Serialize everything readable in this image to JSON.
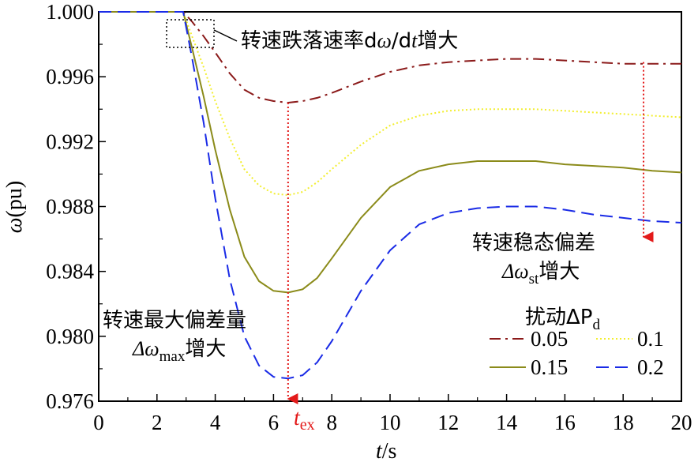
{
  "chart_data": {
    "type": "line",
    "xlabel_italic": "t",
    "xlabel_unit": "/s",
    "ylabel_italic": "ω",
    "ylabel_unit": "(pu)",
    "xlim": [
      0,
      20
    ],
    "ylim": [
      0.976,
      1.0
    ],
    "xticks": [
      "0",
      "2",
      "4",
      "6",
      "8",
      "10",
      "12",
      "14",
      "16",
      "18",
      "20"
    ],
    "yticks": [
      "0.976",
      "0.980",
      "0.984",
      "0.988",
      "0.992",
      "0.996",
      "1.000"
    ],
    "grid": false,
    "legend": {
      "placement": "bottom-right",
      "title": "扰动ΔP",
      "title_sub": "d",
      "columns": 2
    },
    "series": [
      {
        "name": "0.05",
        "color": "#8B1A1A",
        "dash": "dash-dot",
        "x": [
          0,
          2.9,
          3.2,
          3.6,
          4.0,
          4.5,
          5.0,
          5.5,
          6.0,
          6.5,
          7.0,
          7.5,
          8.0,
          9.0,
          10.0,
          11.0,
          12.0,
          13.0,
          14.0,
          15.0,
          16.0,
          17.0,
          18.0,
          19.0,
          20.0
        ],
        "y": [
          1.0,
          1.0,
          0.9994,
          0.9985,
          0.9975,
          0.9962,
          0.9952,
          0.9947,
          0.9945,
          0.9944,
          0.9945,
          0.9947,
          0.995,
          0.9957,
          0.9963,
          0.9967,
          0.9969,
          0.997,
          0.9971,
          0.9971,
          0.997,
          0.9969,
          0.9968,
          0.9968,
          0.9968
        ]
      },
      {
        "name": "0.1",
        "color": "#F2EE2E",
        "dash": "dotted",
        "x": [
          0,
          2.9,
          3.2,
          3.6,
          4.0,
          4.5,
          5.0,
          5.5,
          6.0,
          6.5,
          7.0,
          7.5,
          8.0,
          9.0,
          10.0,
          11.0,
          12.0,
          13.0,
          14.0,
          15.0,
          16.0,
          17.0,
          18.0,
          19.0,
          20.0
        ],
        "y": [
          1.0,
          1.0,
          0.9985,
          0.9966,
          0.9945,
          0.9922,
          0.9903,
          0.9893,
          0.9888,
          0.9887,
          0.9889,
          0.9895,
          0.9903,
          0.9918,
          0.993,
          0.9936,
          0.9939,
          0.994,
          0.994,
          0.994,
          0.9939,
          0.9938,
          0.9937,
          0.9936,
          0.9935
        ]
      },
      {
        "name": "0.15",
        "color": "#8B8B1A",
        "dash": "solid",
        "x": [
          0,
          2.9,
          3.2,
          3.6,
          4.0,
          4.5,
          5.0,
          5.5,
          6.0,
          6.5,
          7.0,
          7.5,
          8.0,
          9.0,
          10.0,
          11.0,
          12.0,
          13.0,
          14.0,
          15.0,
          16.0,
          17.0,
          18.0,
          19.0,
          20.0
        ],
        "y": [
          1.0,
          1.0,
          0.9978,
          0.9948,
          0.9915,
          0.9878,
          0.9849,
          0.9834,
          0.9828,
          0.9827,
          0.9829,
          0.9836,
          0.9848,
          0.9873,
          0.9892,
          0.9902,
          0.9906,
          0.9908,
          0.9908,
          0.9908,
          0.9906,
          0.9905,
          0.9904,
          0.9902,
          0.9901
        ]
      },
      {
        "name": "0.2",
        "color": "#1A2BE6",
        "dash": "dashed",
        "x": [
          0,
          2.9,
          3.2,
          3.6,
          4.0,
          4.5,
          5.0,
          5.5,
          6.0,
          6.5,
          7.0,
          7.5,
          8.0,
          9.0,
          10.0,
          11.0,
          12.0,
          13.0,
          14.0,
          15.0,
          16.0,
          17.0,
          18.0,
          19.0,
          20.0
        ],
        "y": [
          1.0,
          1.0,
          0.9972,
          0.9932,
          0.9885,
          0.9835,
          0.98,
          0.9782,
          0.9775,
          0.9774,
          0.9776,
          0.9784,
          0.9797,
          0.9828,
          0.9853,
          0.9869,
          0.9876,
          0.9879,
          0.988,
          0.988,
          0.9878,
          0.9875,
          0.9873,
          0.9871,
          0.987
        ]
      }
    ],
    "annotations": {
      "rate": {
        "pre": "转速跌落速率d",
        "omega": "ω",
        "mid": "/d",
        "t": "t",
        "post": "增大"
      },
      "steady": {
        "line1": "转速稳态偏差",
        "delta": "Δω",
        "sub": "st",
        "post": "增大"
      },
      "max": {
        "line1": "转速最大偏差量",
        "delta": "Δω",
        "sub": "max",
        "post": "增大"
      },
      "tex": {
        "t": "t",
        "sub": "ex"
      }
    },
    "markers": {
      "tex_x": 6.5,
      "tex_from_y": 0.9944,
      "steady_x": 18.7,
      "steady_from_y": 0.9969
    }
  }
}
